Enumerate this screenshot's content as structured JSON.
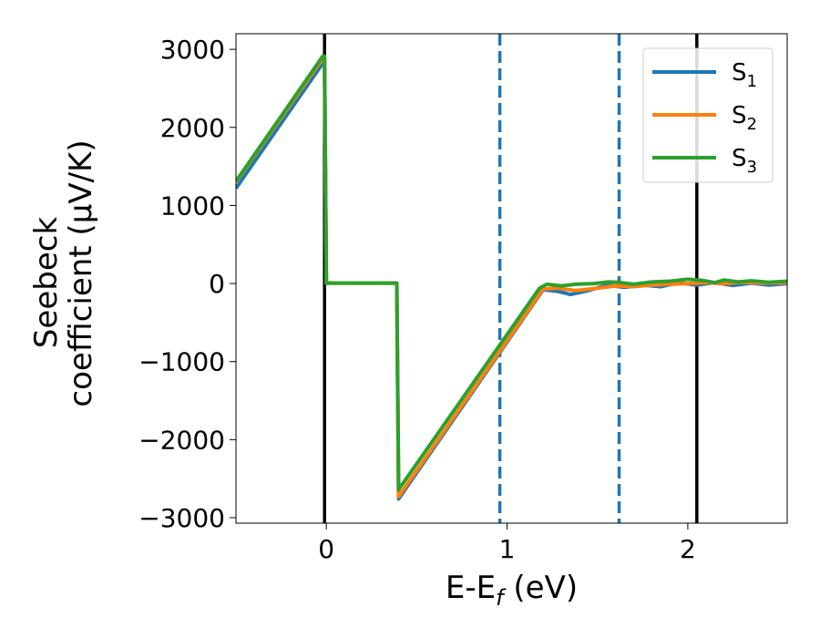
{
  "chart_data": {
    "type": "line",
    "xlabel": "E-E$_f$ (eV)",
    "xlabel_parts": {
      "main": "E-E",
      "sub": "f",
      "tail": " (eV)"
    },
    "ylabel_lines": [
      "Seebeck",
      "coefficient  (μV/K)"
    ],
    "xlim": [
      -0.5,
      2.55
    ],
    "ylim": [
      -3070,
      3200
    ],
    "x_ticks": [
      0,
      1,
      2
    ],
    "y_ticks": [
      -3000,
      -2000,
      -1000,
      0,
      1000,
      2000,
      3000
    ],
    "x_tick_labels": [
      "0",
      "1",
      "2"
    ],
    "y_tick_labels": [
      "−3000",
      "−2000",
      "−1000",
      "0",
      "1000",
      "2000",
      "3000"
    ],
    "legend_position": "top-right",
    "vlines": [
      {
        "x": -0.01,
        "style": "solid",
        "color": "#000000"
      },
      {
        "x": 0.96,
        "style": "dashed",
        "color": "#1f77b4"
      },
      {
        "x": 1.62,
        "style": "dashed",
        "color": "#1f77b4"
      },
      {
        "x": 2.05,
        "style": "solid",
        "color": "#000000"
      }
    ],
    "series": [
      {
        "name": "S1",
        "label_main": "S",
        "label_sub": "1",
        "color": "#1f77b4",
        "points": [
          [
            -0.5,
            1220
          ],
          [
            -0.02,
            2820
          ],
          [
            -0.01,
            2820
          ],
          [
            0.0,
            5
          ],
          [
            0.39,
            5
          ],
          [
            0.4,
            -2760
          ],
          [
            1.2,
            -80
          ],
          [
            1.28,
            -100
          ],
          [
            1.35,
            -140
          ],
          [
            1.45,
            -90
          ],
          [
            1.55,
            -20
          ],
          [
            1.65,
            -50
          ],
          [
            1.75,
            -20
          ],
          [
            1.85,
            -40
          ],
          [
            1.95,
            10
          ],
          [
            2.05,
            -20
          ],
          [
            2.15,
            10
          ],
          [
            2.25,
            -25
          ],
          [
            2.35,
            5
          ],
          [
            2.45,
            -20
          ],
          [
            2.55,
            0
          ]
        ]
      },
      {
        "name": "S2",
        "label_main": "S",
        "label_sub": "2",
        "color": "#ff7f0e",
        "points": [
          [
            -0.5,
            1300
          ],
          [
            -0.02,
            2880
          ],
          [
            -0.01,
            2880
          ],
          [
            0.0,
            5
          ],
          [
            0.39,
            5
          ],
          [
            0.4,
            -2730
          ],
          [
            1.2,
            -70
          ],
          [
            1.28,
            -60
          ],
          [
            1.38,
            -90
          ],
          [
            1.5,
            -60
          ],
          [
            1.6,
            -30
          ],
          [
            1.7,
            -40
          ],
          [
            1.8,
            -20
          ],
          [
            1.9,
            -10
          ],
          [
            2.0,
            0
          ],
          [
            2.1,
            10
          ],
          [
            2.2,
            0
          ],
          [
            2.3,
            15
          ],
          [
            2.4,
            5
          ],
          [
            2.55,
            10
          ]
        ]
      },
      {
        "name": "S3",
        "label_main": "S",
        "label_sub": "3",
        "color": "#2ca02c",
        "points": [
          [
            -0.5,
            1310
          ],
          [
            -0.02,
            2910
          ],
          [
            -0.01,
            2910
          ],
          [
            0.0,
            5
          ],
          [
            0.39,
            5
          ],
          [
            0.4,
            -2640
          ],
          [
            1.18,
            -60
          ],
          [
            1.22,
            -10
          ],
          [
            1.3,
            -30
          ],
          [
            1.38,
            -10
          ],
          [
            1.48,
            0
          ],
          [
            1.56,
            20
          ],
          [
            1.62,
            15
          ],
          [
            1.7,
            -10
          ],
          [
            1.8,
            20
          ],
          [
            1.9,
            30
          ],
          [
            2.0,
            55
          ],
          [
            2.08,
            40
          ],
          [
            2.15,
            10
          ],
          [
            2.2,
            45
          ],
          [
            2.28,
            20
          ],
          [
            2.35,
            35
          ],
          [
            2.45,
            15
          ],
          [
            2.55,
            30
          ]
        ]
      }
    ]
  }
}
